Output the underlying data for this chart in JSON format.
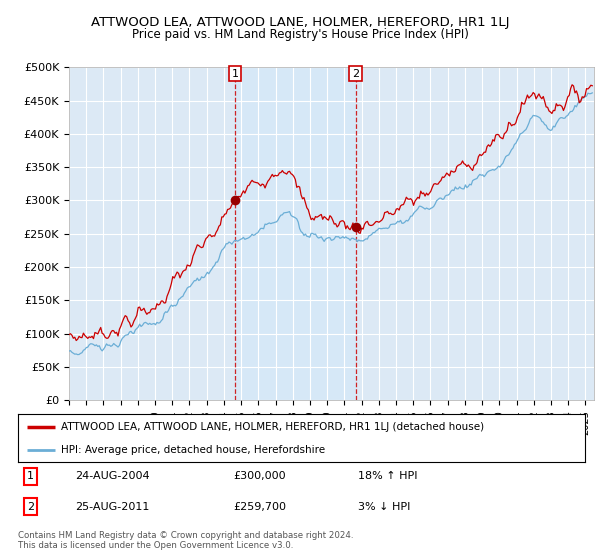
{
  "title": "ATTWOOD LEA, ATTWOOD LANE, HOLMER, HEREFORD, HR1 1LJ",
  "subtitle": "Price paid vs. HM Land Registry's House Price Index (HPI)",
  "ylabel_ticks": [
    "£0",
    "£50K",
    "£100K",
    "£150K",
    "£200K",
    "£250K",
    "£300K",
    "£350K",
    "£400K",
    "£450K",
    "£500K"
  ],
  "ylim": [
    0,
    500000
  ],
  "xlim_start": 1995.0,
  "xlim_end": 2025.5,
  "background_color": "#ffffff",
  "plot_bg_color": "#dce9f5",
  "shade_color": "#c8ddf0",
  "grid_color": "#ffffff",
  "sale1_date": 2004.65,
  "sale1_price": 300000,
  "sale2_date": 2011.65,
  "sale2_price": 259700,
  "legend_line1": "ATTWOOD LEA, ATTWOOD LANE, HOLMER, HEREFORD, HR1 1LJ (detached house)",
  "legend_line2": "HPI: Average price, detached house, Herefordshire",
  "table_row1": [
    "1",
    "24-AUG-2004",
    "£300,000",
    "18% ↑ HPI"
  ],
  "table_row2": [
    "2",
    "25-AUG-2011",
    "£259,700",
    "3% ↓ HPI"
  ],
  "footnote": "Contains HM Land Registry data © Crown copyright and database right 2024.\nThis data is licensed under the Open Government Licence v3.0.",
  "hpi_color": "#6baed6",
  "price_color": "#cc0000",
  "sale_marker_color": "#990000"
}
